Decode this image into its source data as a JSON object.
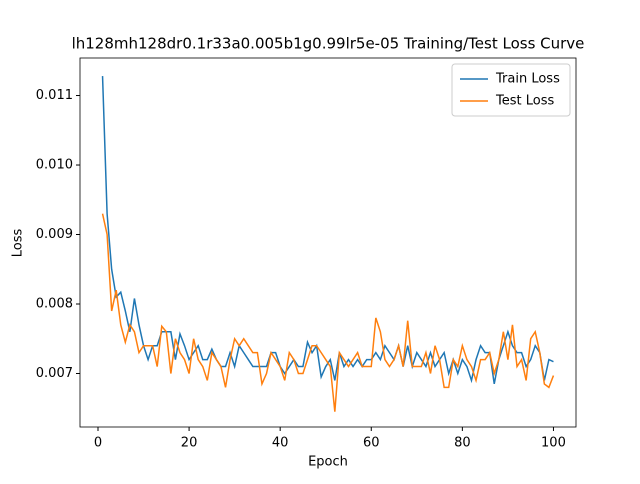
{
  "chart_data": {
    "type": "line",
    "title": "lh128mh128dr0.1r33a0.005b1g0.99lr5e-05 Training/Test Loss Curve",
    "x_label": "Epoch",
    "y_label": "Loss",
    "x": [
      1,
      2,
      3,
      4,
      5,
      6,
      7,
      8,
      9,
      10,
      11,
      12,
      13,
      14,
      15,
      16,
      17,
      18,
      19,
      20,
      21,
      22,
      23,
      24,
      25,
      26,
      27,
      28,
      29,
      30,
      31,
      32,
      33,
      34,
      35,
      36,
      37,
      38,
      39,
      40,
      41,
      42,
      43,
      44,
      45,
      46,
      47,
      48,
      49,
      50,
      51,
      52,
      53,
      54,
      55,
      56,
      57,
      58,
      59,
      60,
      61,
      62,
      63,
      64,
      65,
      66,
      67,
      68,
      69,
      70,
      71,
      72,
      73,
      74,
      75,
      76,
      77,
      78,
      79,
      80,
      81,
      82,
      83,
      84,
      85,
      86,
      87,
      88,
      89,
      90,
      91,
      92,
      93,
      94,
      95,
      96,
      97,
      98,
      99,
      100
    ],
    "series": [
      {
        "name": "Train Loss",
        "color": "#1f77b4",
        "values": [
          0.01128,
          0.0093,
          0.0085,
          0.0081,
          0.00817,
          0.0079,
          0.0076,
          0.00808,
          0.0077,
          0.0074,
          0.0072,
          0.0074,
          0.0074,
          0.0076,
          0.0076,
          0.0076,
          0.0072,
          0.00757,
          0.0074,
          0.0072,
          0.0073,
          0.0074,
          0.0072,
          0.0072,
          0.00735,
          0.0072,
          0.0071,
          0.0071,
          0.0073,
          0.0071,
          0.0074,
          0.0073,
          0.0072,
          0.0071,
          0.0071,
          0.0071,
          0.0071,
          0.0073,
          0.0073,
          0.0071,
          0.007,
          0.0071,
          0.0072,
          0.0071,
          0.0071,
          0.00745,
          0.0073,
          0.0074,
          0.00695,
          0.0071,
          0.0072,
          0.0069,
          0.0073,
          0.0071,
          0.0072,
          0.0071,
          0.0072,
          0.0071,
          0.0072,
          0.0072,
          0.0073,
          0.0072,
          0.0074,
          0.0073,
          0.0072,
          0.0074,
          0.0071,
          0.0074,
          0.0071,
          0.0073,
          0.0072,
          0.0071,
          0.0073,
          0.0071,
          0.0072,
          0.0073,
          0.007,
          0.0072,
          0.007,
          0.0072,
          0.0071,
          0.0069,
          0.0072,
          0.0074,
          0.0073,
          0.0073,
          0.00685,
          0.0072,
          0.0074,
          0.0076,
          0.0074,
          0.0073,
          0.0073,
          0.0071,
          0.0072,
          0.0074,
          0.0073,
          0.0069,
          0.0072,
          0.00717
        ]
      },
      {
        "name": "Test Loss",
        "color": "#ff7f0e",
        "values": [
          0.0093,
          0.009,
          0.0079,
          0.0082,
          0.0077,
          0.00745,
          0.0077,
          0.0076,
          0.0073,
          0.0074,
          0.0074,
          0.0074,
          0.0071,
          0.00768,
          0.0076,
          0.007,
          0.0075,
          0.0073,
          0.0072,
          0.007,
          0.0075,
          0.0072,
          0.0071,
          0.0069,
          0.0073,
          0.0072,
          0.0071,
          0.0068,
          0.0072,
          0.0075,
          0.0074,
          0.0075,
          0.0074,
          0.0073,
          0.0073,
          0.00685,
          0.007,
          0.0073,
          0.0072,
          0.0071,
          0.0069,
          0.0073,
          0.0072,
          0.007,
          0.007,
          0.0072,
          0.0074,
          0.0074,
          0.0073,
          0.0072,
          0.0071,
          0.00645,
          0.0073,
          0.0072,
          0.0071,
          0.0072,
          0.0073,
          0.0071,
          0.0071,
          0.0071,
          0.0078,
          0.0076,
          0.0072,
          0.0071,
          0.0072,
          0.0074,
          0.0071,
          0.00776,
          0.0071,
          0.0071,
          0.0071,
          0.0073,
          0.007,
          0.0074,
          0.0072,
          0.0068,
          0.0068,
          0.0072,
          0.0071,
          0.0074,
          0.0072,
          0.0071,
          0.0069,
          0.0072,
          0.0072,
          0.0073,
          0.007,
          0.0072,
          0.0076,
          0.0072,
          0.0077,
          0.0071,
          0.0072,
          0.0069,
          0.0075,
          0.0076,
          0.0073,
          0.00685,
          0.0068,
          0.00697
        ]
      }
    ],
    "xlim": [
      -3.95,
      104.95
    ],
    "xticks": [
      0,
      20,
      40,
      60,
      80,
      100
    ],
    "ylim": [
      0.00623,
      0.01154
    ],
    "yticks": [
      0.007,
      0.008,
      0.009,
      {
        "value": 0.01,
        "label": "0.010"
      },
      0.011
    ],
    "legend": "upper right"
  }
}
